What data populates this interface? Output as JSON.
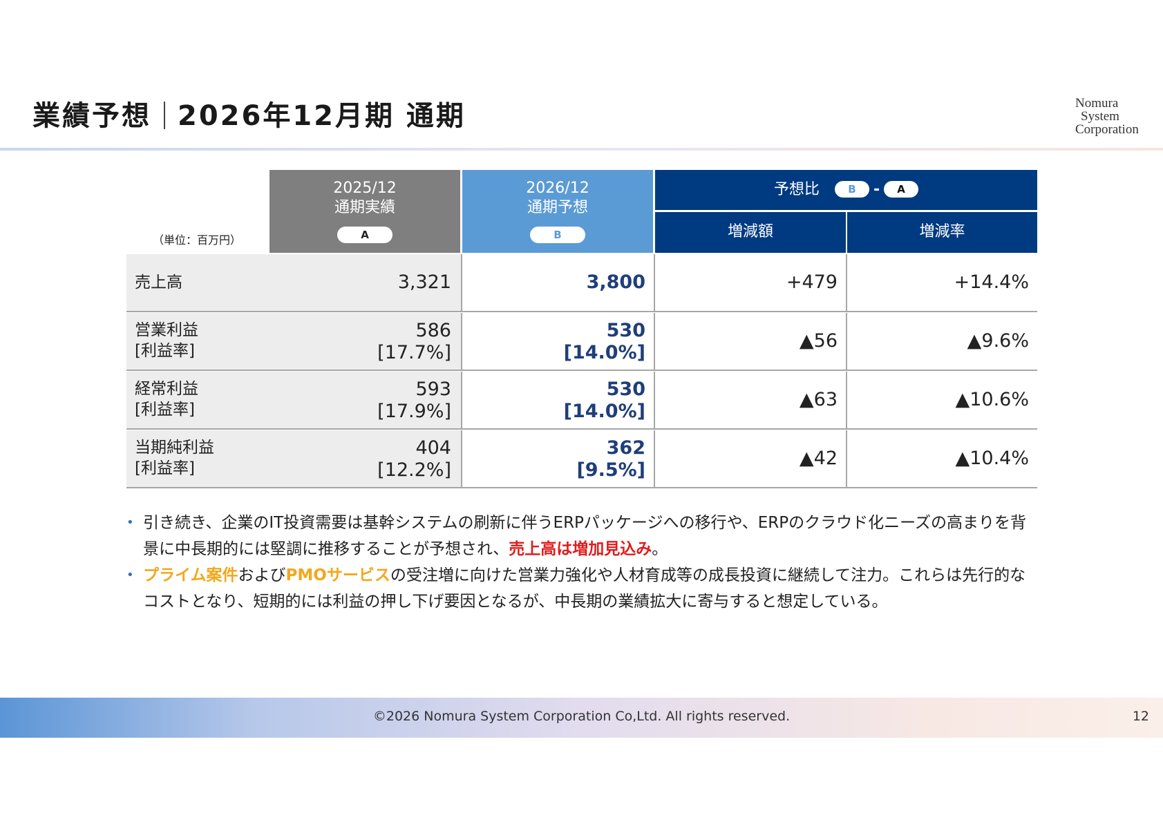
{
  "header": {
    "title_left": "業績予想",
    "title_right": "2026年12月期 通期",
    "logo": [
      "Nomura",
      "System",
      "Corporation"
    ]
  },
  "table": {
    "unit": "（単位：百万円）",
    "col_a": {
      "line1": "2025/12",
      "line2": "通期実績",
      "tag": "A"
    },
    "col_b": {
      "line1": "2026/12",
      "line2": "通期予想",
      "tag": "B"
    },
    "col_c": {
      "label": "予想比",
      "tag_b": "B",
      "dash": "-",
      "tag_a": "A"
    },
    "col_d": {
      "label": "増減額"
    },
    "col_e": {
      "label": "増減率"
    },
    "rows": [
      {
        "label": "売上高",
        "a": "3,321",
        "b": "3,800",
        "diff": "+479",
        "rate": "+14.4%"
      },
      {
        "label": "営業利益",
        "sub": "[利益率]",
        "a": "586",
        "a2": "[17.7%]",
        "b": "530",
        "b2": "[14.0%]",
        "diff": "▲56",
        "rate": "▲9.6%"
      },
      {
        "label": "経常利益",
        "sub": "[利益率]",
        "a": "593",
        "a2": "[17.9%]",
        "b": "530",
        "b2": "[14.0%]",
        "diff": "▲63",
        "rate": "▲10.6%"
      },
      {
        "label": "当期純利益",
        "sub": "[利益率]",
        "a": "404",
        "a2": "[12.2%]",
        "b": "362",
        "b2": "[9.5%]",
        "diff": "▲42",
        "rate": "▲10.4%"
      }
    ]
  },
  "bullets": [
    {
      "dot": "•",
      "text1": "引き続き、企業のIT投資需要は基幹システムの刷新に伴うERPパッケージへの移行や、ERPのクラウド化ニーズの高まりを背景に中長期的には堅調に推移することが予想され、",
      "highlight": "売上高は増加見込み",
      "text2": "。"
    },
    {
      "dot": "•",
      "hl1": "プライム案件",
      "text1": "および",
      "hl2": "PMOサービス",
      "text2": "の受注増に向けた営業力強化や人材育成等の成長投資に継続して注力。これらは先行的なコストとなり、短期的には利益の押し下げ要因となるが、中長期の業績拡大に寄与すると想定している。"
    }
  ],
  "footer": {
    "copyright": "©2026 Nomura System Corporation Co,Ltd. All rights reserved.",
    "page": "12"
  },
  "colors": {
    "header_gray": "#7f7f7f",
    "header_light_blue": "#5b9bd5",
    "header_navy": "#003a80",
    "forecast_text": "#1f3e7a",
    "highlight_red": "#e21b1b",
    "highlight_orange": "#f3a71c"
  }
}
